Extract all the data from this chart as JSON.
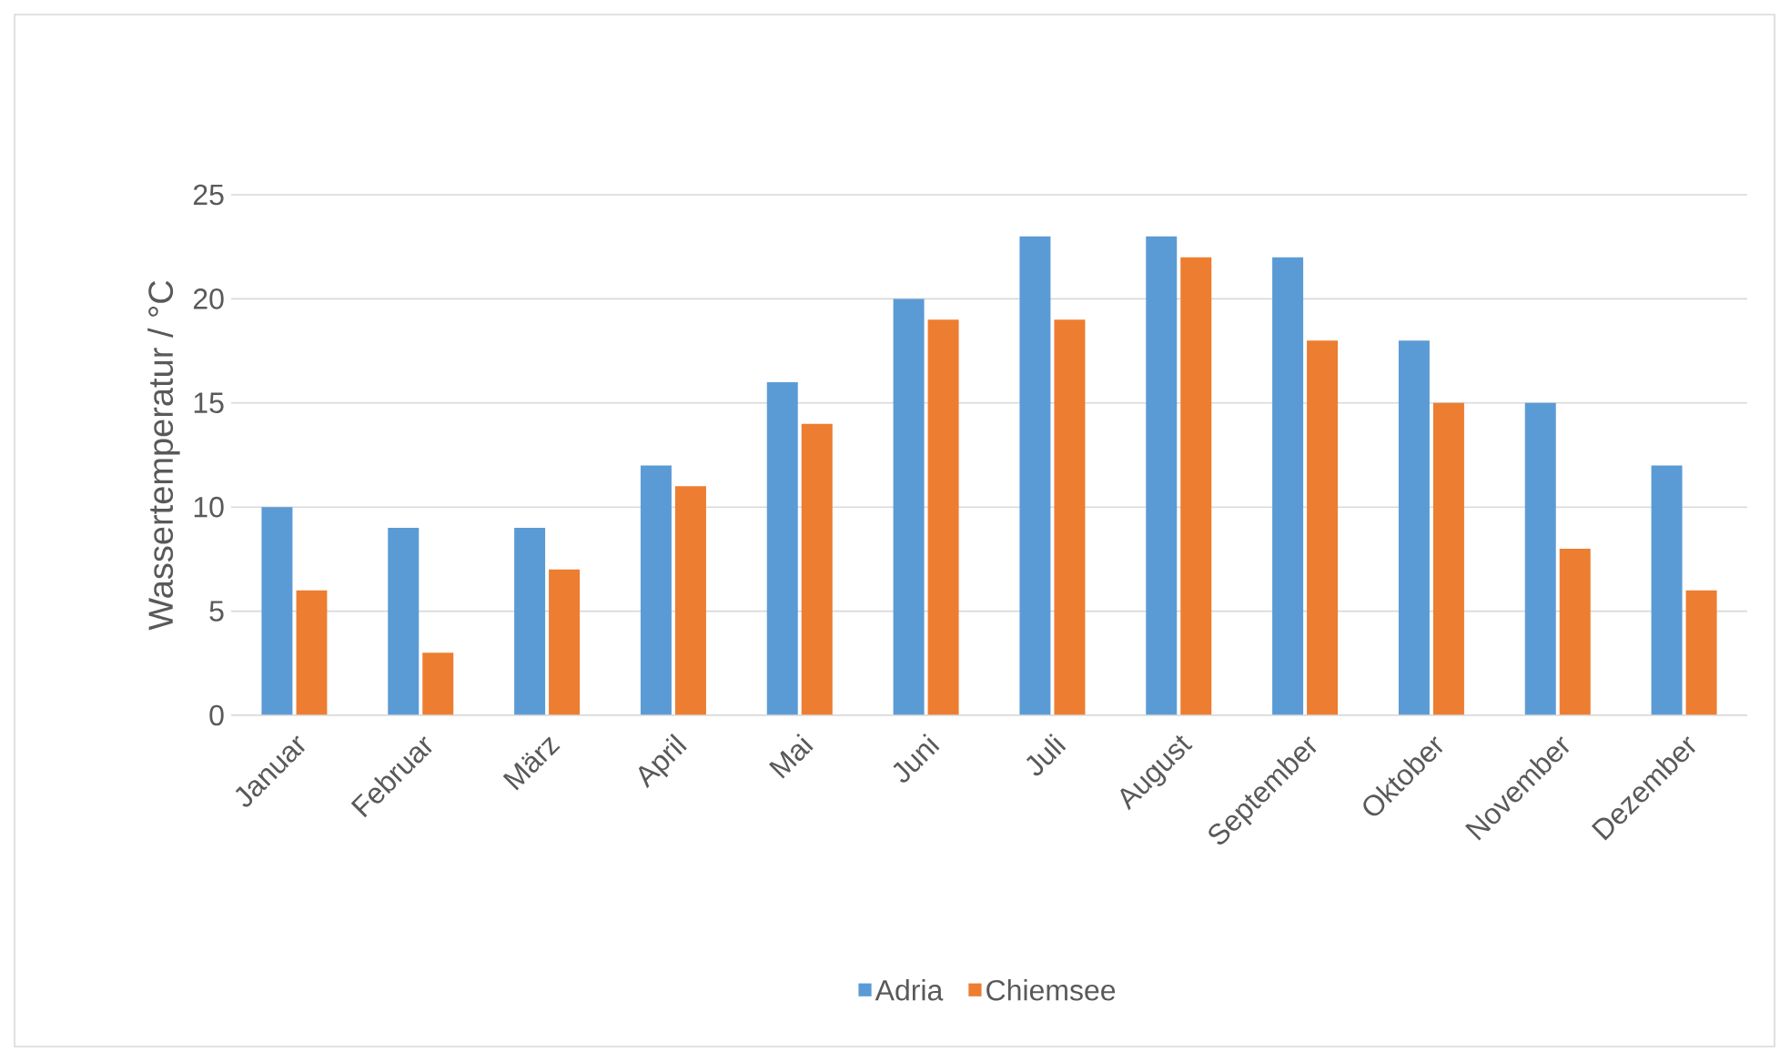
{
  "chart_data": {
    "type": "bar",
    "categories": [
      "Januar",
      "Februar",
      "März",
      "April",
      "Mai",
      "Juni",
      "Juli",
      "August",
      "September",
      "Oktober",
      "November",
      "Dezember"
    ],
    "series": [
      {
        "name": "Adria",
        "color": "#5b9bd5",
        "values": [
          10,
          9,
          9,
          12,
          16,
          20,
          23,
          23,
          22,
          18,
          15,
          12
        ]
      },
      {
        "name": "Chiemsee",
        "color": "#ed7d31",
        "values": [
          6,
          3,
          7,
          11,
          14,
          19,
          19,
          22,
          18,
          15,
          8,
          6
        ]
      }
    ],
    "ylabel": "Wassertemperatur / °C",
    "ylim": [
      0,
      25
    ],
    "yticks": [
      0,
      5,
      10,
      15,
      20,
      25
    ],
    "grid": "y",
    "legend": "bottom"
  }
}
